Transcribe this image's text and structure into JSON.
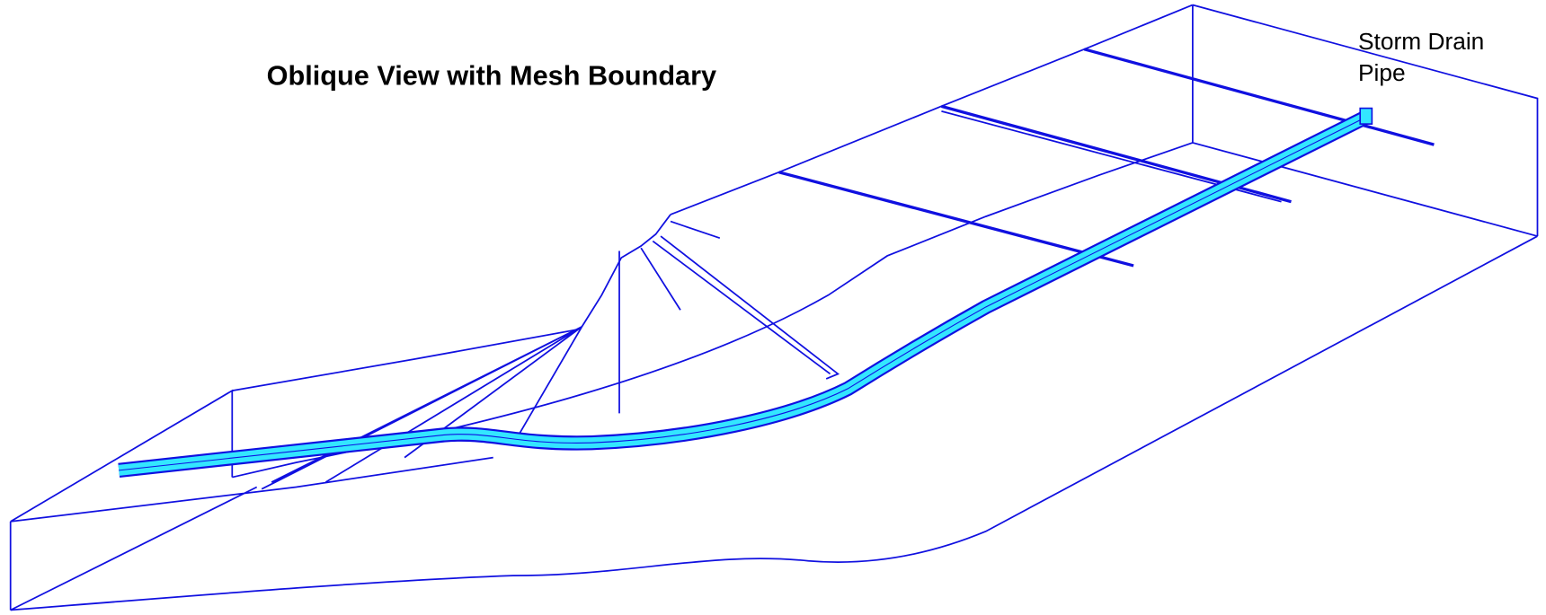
{
  "title": "Oblique View with Mesh Boundary",
  "label": {
    "lines": [
      "Storm Drain",
      "Pipe"
    ]
  }
}
